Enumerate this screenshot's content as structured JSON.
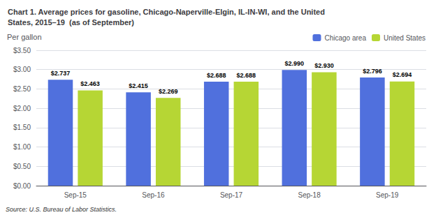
{
  "chart_data": {
    "type": "bar",
    "title": "Chart 1. Average prices for gasoline, Chicago-Naperville-Elgin, IL-IN-WI, and the United\nStates, 2015–19  (as of September)",
    "ylabel": "Per gallon",
    "annotations": [
      "Source: U.S. Bureau of Labor Statistics."
    ],
    "categories": [
      "Sep-15",
      "Sep-16",
      "Sep-17",
      "Sep-18",
      "Sep-19"
    ],
    "series": [
      {
        "name": "Chicago area",
        "values": [
          2.737,
          2.415,
          2.688,
          2.99,
          2.796
        ],
        "value_labels": [
          "$2.737",
          "$2.415",
          "$2.688",
          "$2.990",
          "$2.796"
        ]
      },
      {
        "name": "United States",
        "values": [
          2.463,
          2.269,
          2.688,
          2.93,
          2.694
        ],
        "value_labels": [
          "$2.463",
          "$2.269",
          "$2.688",
          "$2.930",
          "$2.694"
        ]
      }
    ],
    "ylim": [
      0.0,
      3.5
    ],
    "yticks": [
      {
        "value": 0.0,
        "label": "$0.00"
      },
      {
        "value": 0.5,
        "label": "$0.50"
      },
      {
        "value": 1.0,
        "label": "$1.00"
      },
      {
        "value": 1.5,
        "label": "$1.50"
      },
      {
        "value": 2.0,
        "label": "$2.00"
      },
      {
        "value": 2.5,
        "label": "$2.50"
      },
      {
        "value": 3.0,
        "label": "$3.00"
      },
      {
        "value": 3.5,
        "label": "$3.50"
      }
    ],
    "grid": true,
    "legend": "upper right",
    "data_labels": true
  }
}
